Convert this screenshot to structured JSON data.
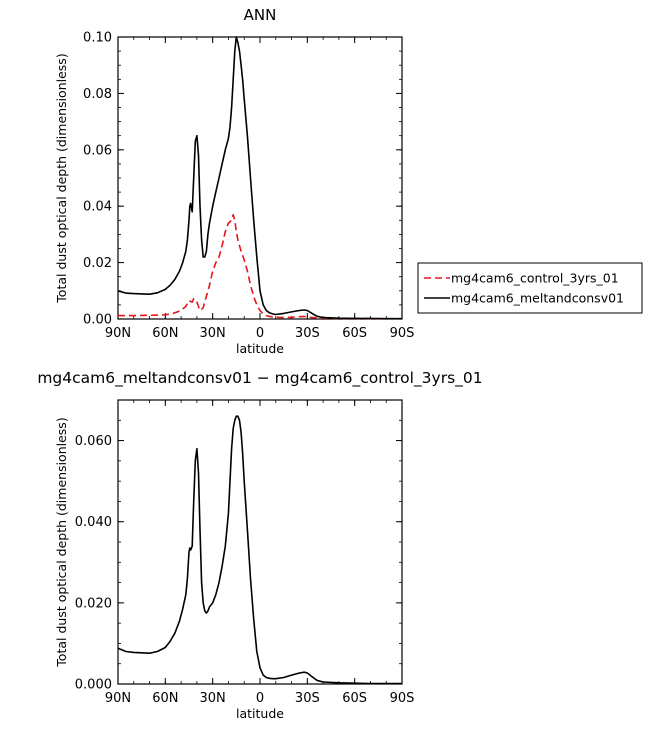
{
  "chart_data": [
    {
      "type": "line",
      "title": "ANN",
      "xlabel": "latitude",
      "ylabel": "Total dust optical depth (dimensionless)",
      "xlim": [
        90,
        -90
      ],
      "ylim": [
        0,
        0.1
      ],
      "x_ticks": [
        90,
        60,
        30,
        0,
        -30,
        -60,
        -90
      ],
      "x_tick_labels": [
        "90N",
        "60N",
        "30N",
        "0",
        "30S",
        "60S",
        "90S"
      ],
      "y_ticks": [
        0,
        0.02,
        0.04,
        0.06,
        0.08,
        0.1
      ],
      "y_tick_labels": [
        "0.00",
        "0.02",
        "0.04",
        "0.06",
        "0.08",
        "0.10"
      ],
      "legend_position": "outside-right",
      "series": [
        {
          "name": "mg4cam6_control_3yrs_01",
          "color": "#e8151b",
          "style": "dashed",
          "x": [
            90,
            80,
            70,
            60,
            55,
            50,
            47,
            45,
            43,
            42,
            41,
            40,
            38,
            36,
            34,
            32,
            30,
            28,
            26,
            24,
            22,
            20,
            18,
            17,
            16,
            15,
            14,
            12,
            10,
            8,
            6,
            4,
            2,
            0,
            -2,
            -4,
            -6,
            -10,
            -15,
            -20,
            -25,
            -28,
            -30,
            -33,
            -40,
            -50,
            -60,
            -70,
            -80,
            -90
          ],
          "y": [
            0.0012,
            0.0012,
            0.0013,
            0.0015,
            0.002,
            0.003,
            0.0045,
            0.0065,
            0.006,
            0.0072,
            0.0068,
            0.006,
            0.003,
            0.004,
            0.008,
            0.012,
            0.017,
            0.02,
            0.022,
            0.026,
            0.031,
            0.034,
            0.035,
            0.037,
            0.035,
            0.031,
            0.028,
            0.024,
            0.021,
            0.017,
            0.012,
            0.008,
            0.005,
            0.003,
            0.0018,
            0.0012,
            0.0009,
            0.0006,
            0.0005,
            0.0006,
            0.0008,
            0.0009,
            0.0008,
            0.0005,
            0.0003,
            0.0002,
            0.0002,
            0.0001,
            0.0001,
            0.0001
          ]
        },
        {
          "name": "mg4cam6_meltandconsv01",
          "color": "#000000",
          "style": "solid",
          "x": [
            90,
            85,
            80,
            75,
            70,
            65,
            60,
            57,
            54,
            51,
            49,
            47,
            46,
            45,
            44.5,
            44,
            43,
            42,
            41,
            40,
            39,
            38,
            37,
            36,
            35,
            34,
            33,
            32,
            30,
            28,
            26,
            24,
            22,
            20,
            19,
            18,
            17,
            16,
            15,
            14,
            13,
            12,
            11,
            10,
            8,
            6,
            4,
            2,
            0,
            -2,
            -4,
            -6,
            -8,
            -10,
            -15,
            -20,
            -25,
            -28,
            -30,
            -33,
            -36,
            -40,
            -50,
            -60,
            -70,
            -80,
            -90
          ],
          "y": [
            0.01,
            0.0092,
            0.009,
            0.0089,
            0.0088,
            0.0093,
            0.0105,
            0.012,
            0.014,
            0.017,
            0.02,
            0.024,
            0.028,
            0.035,
            0.04,
            0.041,
            0.038,
            0.05,
            0.063,
            0.065,
            0.058,
            0.04,
            0.028,
            0.022,
            0.022,
            0.024,
            0.03,
            0.034,
            0.04,
            0.045,
            0.05,
            0.055,
            0.06,
            0.064,
            0.068,
            0.075,
            0.085,
            0.095,
            0.1,
            0.098,
            0.095,
            0.09,
            0.085,
            0.078,
            0.065,
            0.05,
            0.035,
            0.022,
            0.01,
            0.005,
            0.003,
            0.0022,
            0.0018,
            0.0016,
            0.002,
            0.0025,
            0.003,
            0.0032,
            0.003,
            0.002,
            0.001,
            0.0005,
            0.0003,
            0.0002,
            0.0002,
            0.0001,
            0.0001
          ]
        }
      ]
    },
    {
      "type": "line",
      "title": "mg4cam6_meltandconsv01 − mg4cam6_control_3yrs_01",
      "xlabel": "latitude",
      "ylabel": "Total dust optical depth (dimensionless)",
      "xlim": [
        90,
        -90
      ],
      "ylim": [
        0,
        0.07
      ],
      "x_ticks": [
        90,
        60,
        30,
        0,
        -30,
        -60,
        -90
      ],
      "x_tick_labels": [
        "90N",
        "60N",
        "30N",
        "0",
        "30S",
        "60S",
        "90S"
      ],
      "y_ticks": [
        0,
        0.02,
        0.04,
        0.06
      ],
      "y_tick_labels": [
        "0.000",
        "0.020",
        "0.040",
        "0.060"
      ],
      "series": [
        {
          "color": "#000000",
          "style": "solid",
          "x": [
            90,
            85,
            80,
            75,
            70,
            65,
            60,
            57,
            54,
            51,
            49,
            47,
            46,
            45,
            44.5,
            44,
            43,
            42,
            41,
            40,
            39,
            38,
            37,
            36,
            35,
            34,
            33,
            32,
            30,
            28,
            26,
            24,
            22,
            20,
            19,
            18,
            17,
            16,
            15,
            14,
            13,
            12,
            11,
            10,
            8,
            6,
            4,
            2,
            0,
            -2,
            -4,
            -6,
            -8,
            -10,
            -15,
            -20,
            -25,
            -28,
            -30,
            -33,
            -36,
            -40,
            -50,
            -60,
            -70,
            -80,
            -90
          ],
          "y": [
            0.0088,
            0.008,
            0.0078,
            0.0077,
            0.0076,
            0.008,
            0.009,
            0.0105,
            0.0125,
            0.0155,
            0.0185,
            0.022,
            0.026,
            0.0325,
            0.0335,
            0.033,
            0.034,
            0.045,
            0.055,
            0.058,
            0.052,
            0.038,
            0.025,
            0.02,
            0.018,
            0.0175,
            0.018,
            0.019,
            0.02,
            0.022,
            0.025,
            0.029,
            0.034,
            0.042,
            0.05,
            0.058,
            0.063,
            0.065,
            0.066,
            0.066,
            0.065,
            0.062,
            0.057,
            0.05,
            0.038,
            0.026,
            0.016,
            0.008,
            0.004,
            0.0022,
            0.0016,
            0.0014,
            0.0013,
            0.0013,
            0.0016,
            0.0022,
            0.0027,
            0.0029,
            0.0027,
            0.0018,
            0.0009,
            0.0005,
            0.0003,
            0.0002,
            0.0001,
            0.0001,
            0.0001
          ]
        }
      ]
    }
  ]
}
